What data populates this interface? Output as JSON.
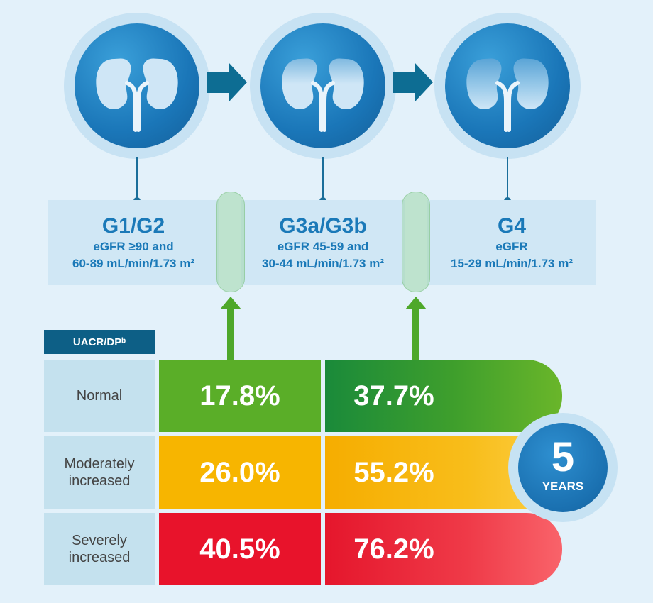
{
  "stages": [
    {
      "title": "G1/G2",
      "line1": "eGFR ≥90 and",
      "line2": "60-89 mL/min/1.73 m²"
    },
    {
      "title": "G3a/G3b",
      "line1": "eGFR 45-59 and",
      "line2": "30-44 mL/min/1.73 m²"
    },
    {
      "title": "G4",
      "line1": "eGFR",
      "line2": "15-29 mL/min/1.73 m²"
    }
  ],
  "table": {
    "header": "UACR/DPᵇ",
    "rows": [
      {
        "label": "Normal",
        "col1": "17.8%",
        "col2": "37.7%"
      },
      {
        "label": "Moderately increased",
        "col1": "26.0%",
        "col2": "55.2%"
      },
      {
        "label": "Severely increased",
        "col1": "40.5%",
        "col2": "76.2%"
      }
    ]
  },
  "badge": {
    "number": "5",
    "unit": "YEARS"
  },
  "colors": {
    "green": "#4ea82a",
    "green_dark": "#1a8a3a",
    "yellow": "#f7b500",
    "red": "#e8132b",
    "blue": "#1a79b8",
    "navy": "#0d5f86"
  }
}
